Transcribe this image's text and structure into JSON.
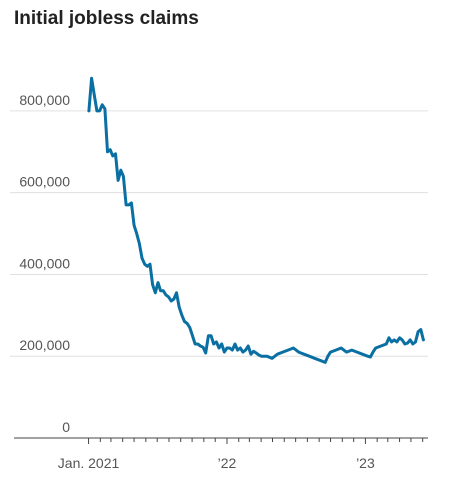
{
  "chart_data": {
    "type": "line",
    "title": "Initial jobless claims",
    "xlabel": "",
    "ylabel": "",
    "ylim": [
      0,
      900000
    ],
    "y_ticks": [
      {
        "value": 0,
        "label": "0"
      },
      {
        "value": 200000,
        "label": "200,000"
      },
      {
        "value": 400000,
        "label": "400,000"
      },
      {
        "value": 600000,
        "label": "600,000"
      },
      {
        "value": 800000,
        "label": "800,000"
      }
    ],
    "x_ticks": [
      {
        "value": "2021-01-01",
        "label": "Jan. 2021"
      },
      {
        "value": "2022-01-01",
        "label": "’22"
      },
      {
        "value": "2023-01-01",
        "label": "’23"
      }
    ],
    "xlim": [
      "2020-12-20",
      "2023-06-15"
    ],
    "grid": true,
    "legend": "none",
    "colors": {
      "line": "#0a6fa3",
      "grid": "#e0e0e0",
      "axis": "#444444"
    },
    "series": [
      {
        "x": [
          "2021-01-02",
          "2021-01-09",
          "2021-01-16",
          "2021-01-23",
          "2021-01-30",
          "2021-02-06",
          "2021-02-13",
          "2021-02-20",
          "2021-02-27",
          "2021-03-06",
          "2021-03-13",
          "2021-03-20",
          "2021-03-27",
          "2021-04-03",
          "2021-04-10",
          "2021-04-17",
          "2021-04-24",
          "2021-05-01",
          "2021-05-08",
          "2021-05-15",
          "2021-05-22",
          "2021-05-29",
          "2021-06-05",
          "2021-06-12",
          "2021-06-19",
          "2021-06-26",
          "2021-07-03",
          "2021-07-10",
          "2021-07-17",
          "2021-07-24",
          "2021-07-31",
          "2021-08-07",
          "2021-08-14",
          "2021-08-21",
          "2021-08-28",
          "2021-09-04",
          "2021-09-11",
          "2021-09-18",
          "2021-09-25",
          "2021-10-02",
          "2021-10-09",
          "2021-10-16",
          "2021-10-23",
          "2021-10-30",
          "2021-11-06",
          "2021-11-13",
          "2021-11-20",
          "2021-11-27",
          "2021-12-04",
          "2021-12-11",
          "2021-12-18",
          "2021-12-25",
          "2022-01-01",
          "2022-01-08",
          "2022-01-15",
          "2022-01-22",
          "2022-01-29",
          "2022-02-05",
          "2022-02-12",
          "2022-02-19",
          "2022-02-26",
          "2022-03-05",
          "2022-03-12",
          "2022-03-19",
          "2022-03-26",
          "2022-04-02",
          "2022-04-16",
          "2022-04-30",
          "2022-05-14",
          "2022-05-28",
          "2022-06-11",
          "2022-06-25",
          "2022-07-09",
          "2022-07-23",
          "2022-08-06",
          "2022-08-20",
          "2022-09-03",
          "2022-09-17",
          "2022-09-24",
          "2022-10-01",
          "2022-10-15",
          "2022-10-29",
          "2022-11-12",
          "2022-11-26",
          "2022-12-10",
          "2022-12-24",
          "2023-01-07",
          "2023-01-14",
          "2023-01-21",
          "2023-01-28",
          "2023-02-11",
          "2023-02-25",
          "2023-03-04",
          "2023-03-11",
          "2023-03-18",
          "2023-03-25",
          "2023-04-01",
          "2023-04-08",
          "2023-04-15",
          "2023-04-22",
          "2023-04-29",
          "2023-05-06",
          "2023-05-13",
          "2023-05-20",
          "2023-05-27",
          "2023-06-03"
        ],
        "values": [
          800000,
          880000,
          840000,
          800000,
          800000,
          815000,
          805000,
          700000,
          705000,
          690000,
          695000,
          630000,
          655000,
          640000,
          570000,
          570000,
          575000,
          520000,
          500000,
          475000,
          440000,
          425000,
          420000,
          425000,
          375000,
          355000,
          380000,
          360000,
          360000,
          350000,
          345000,
          335000,
          340000,
          355000,
          320000,
          300000,
          285000,
          280000,
          270000,
          250000,
          230000,
          230000,
          225000,
          222000,
          208000,
          250000,
          250000,
          230000,
          235000,
          220000,
          230000,
          210000,
          220000,
          220000,
          215000,
          230000,
          215000,
          220000,
          210000,
          215000,
          225000,
          205000,
          212000,
          208000,
          203000,
          200000,
          200000,
          195000,
          205000,
          210000,
          215000,
          220000,
          210000,
          205000,
          200000,
          195000,
          190000,
          185000,
          200000,
          210000,
          215000,
          220000,
          210000,
          215000,
          210000,
          205000,
          200000,
          198000,
          210000,
          220000,
          225000,
          230000,
          245000,
          235000,
          240000,
          235000,
          245000,
          240000,
          230000,
          232000,
          240000,
          230000,
          235000,
          260000,
          265000,
          240000
        ]
      }
    ]
  }
}
